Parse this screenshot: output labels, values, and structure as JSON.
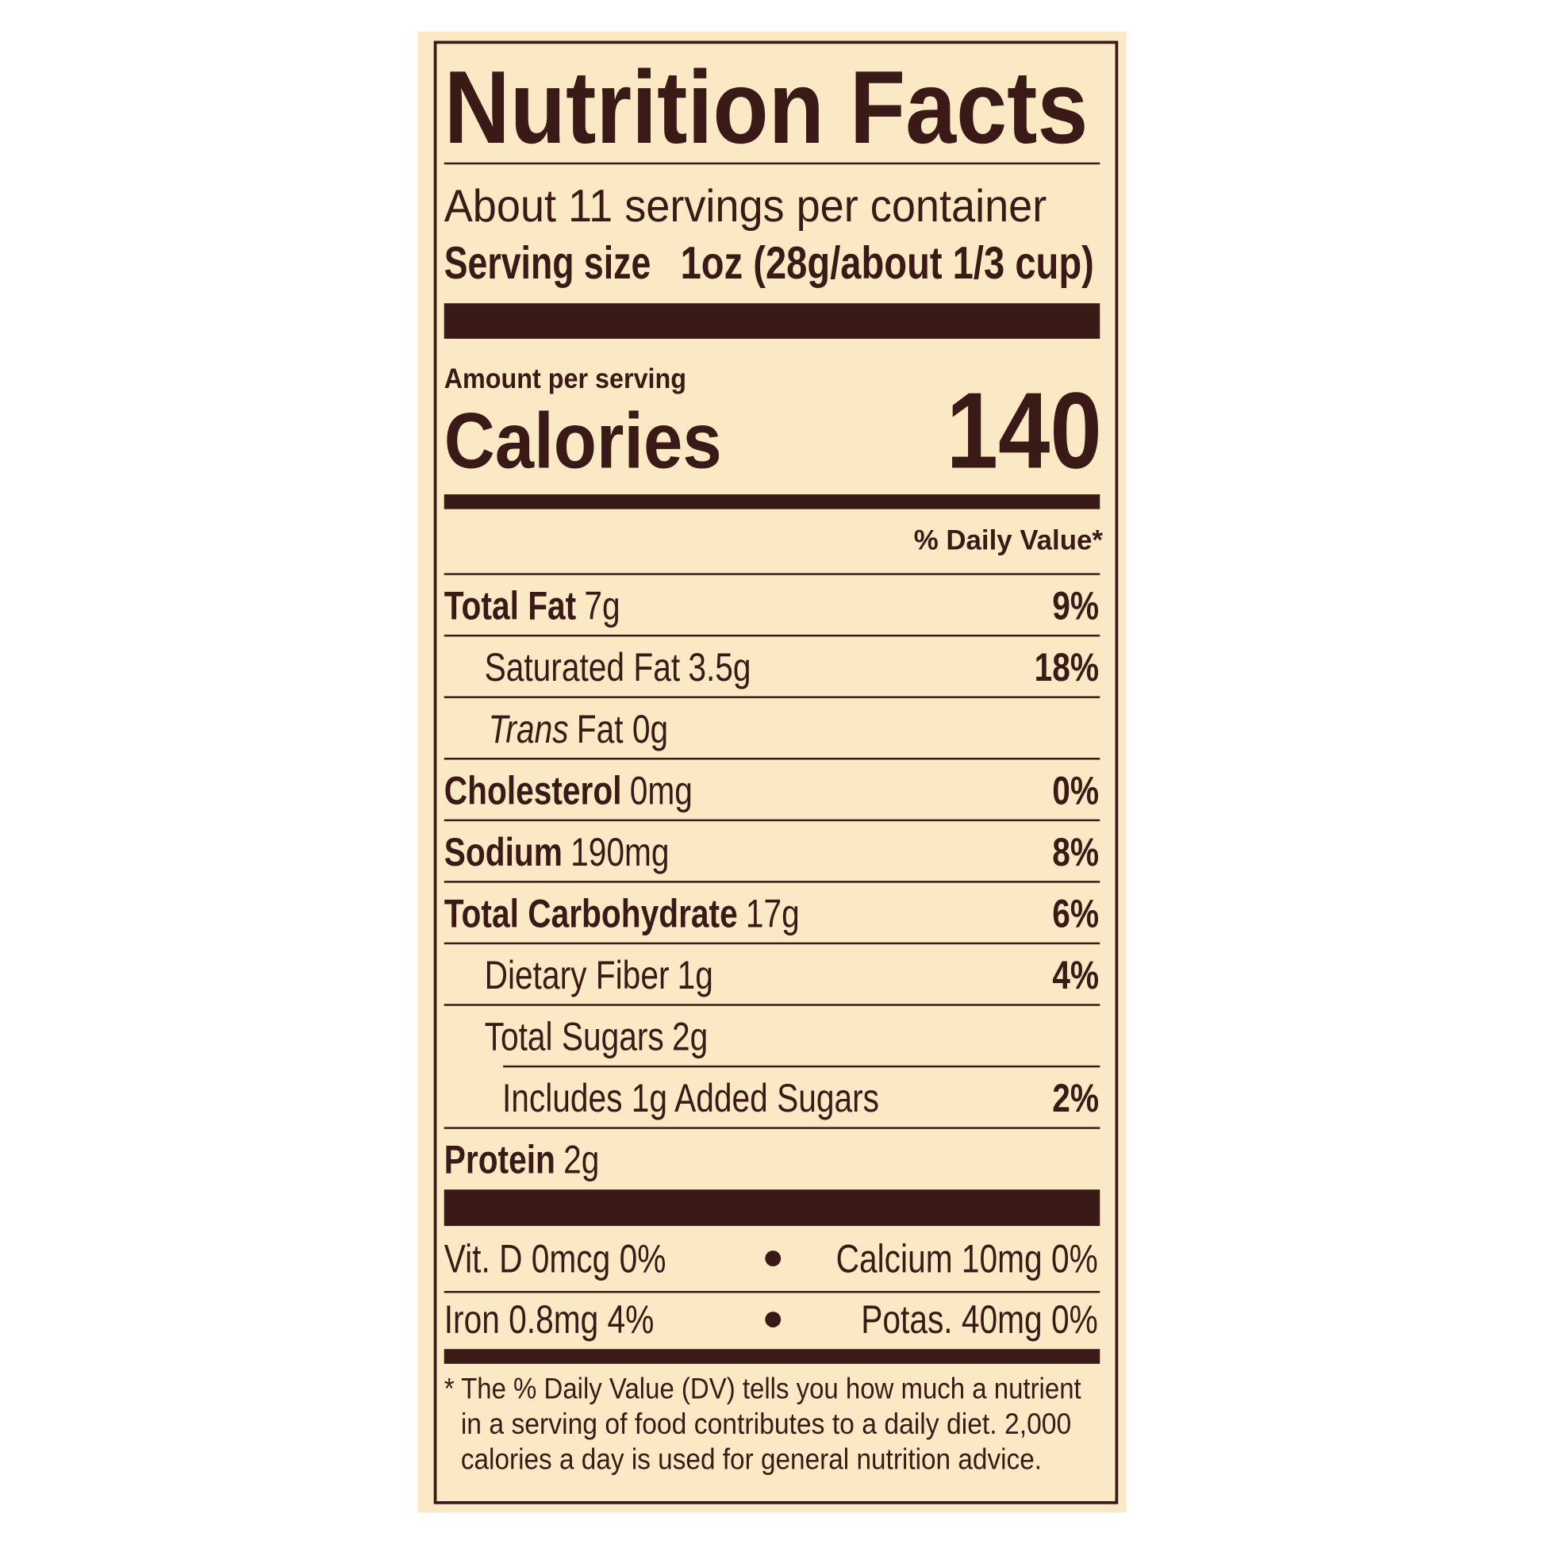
{
  "title": "Nutrition Facts",
  "servings": "About 11 servings per container",
  "serving_size": {
    "label": "Serving size",
    "value": "1oz (28g/about 1/3 cup)"
  },
  "amount_per_serving": "Amount per serving",
  "calories": {
    "label": "Calories",
    "value": "140"
  },
  "daily_value_header": "% Daily Value*",
  "nutrients": [
    {
      "name": "Total Fat",
      "amount": "7g",
      "dv": "9%"
    },
    {
      "name": "Saturated Fat",
      "amount": "3.5g",
      "dv": "18%"
    },
    {
      "name": "Trans",
      "amount": "Fat 0g"
    },
    {
      "name": "Cholesterol",
      "amount": "0mg",
      "dv": "0%"
    },
    {
      "name": "Sodium",
      "amount": "190mg",
      "dv": "8%"
    },
    {
      "name": "Total Carbohydrate",
      "amount": "17g",
      "dv": "6%"
    },
    {
      "name": "Dietary Fiber",
      "amount": "1g",
      "dv": "4%"
    },
    {
      "name": "Total Sugars",
      "amount": "2g"
    },
    {
      "name": "Includes 1g Added Sugars",
      "dv": "2%"
    },
    {
      "name": "Protein",
      "amount": "2g"
    }
  ],
  "vitamins": [
    [
      "Vit. D 0mcg 0%",
      "Calcium 10mg 0%"
    ],
    [
      "Iron 0.8mg 4%",
      "Potas. 40mg 0%"
    ]
  ],
  "footnote": [
    "* The % Daily Value (DV) tells you how much a nutrient",
    "in a serving of food contributes to a daily diet. 2,000",
    "calories a day is used for general nutrition advice."
  ]
}
